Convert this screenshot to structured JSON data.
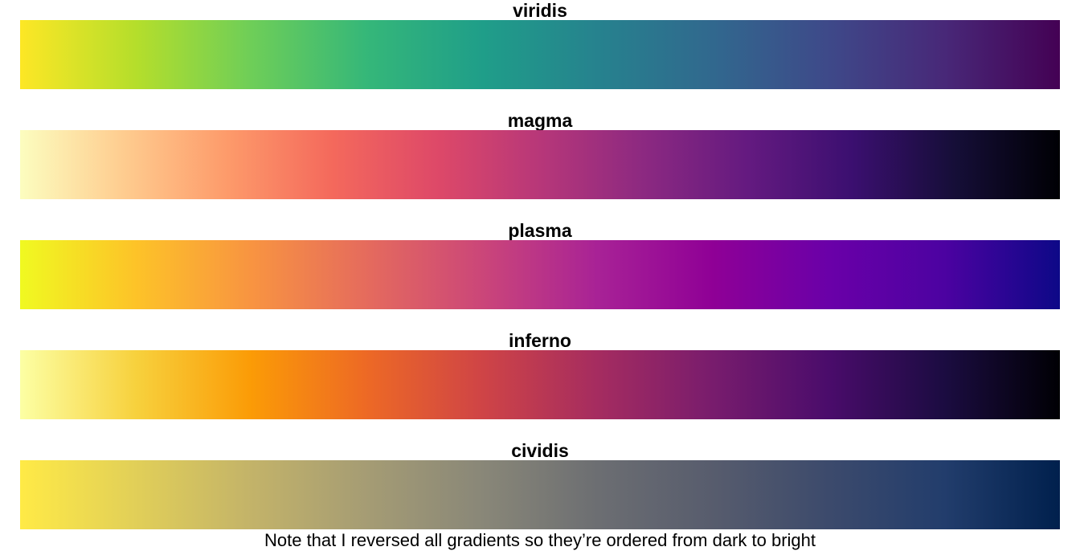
{
  "palettes": [
    {
      "name": "viridis",
      "colors": [
        "#FDE725",
        "#B5DE2B",
        "#6ECE58",
        "#35B779",
        "#1F9E89",
        "#26828E",
        "#31688E",
        "#3E4989",
        "#482878",
        "#440154"
      ]
    },
    {
      "name": "magma",
      "colors": [
        "#FCFDBF",
        "#FECC8F",
        "#FD9A6A",
        "#F4695C",
        "#DE4968",
        "#B73779",
        "#8C2981",
        "#641A80",
        "#3B0F70",
        "#150E37",
        "#000004"
      ]
    },
    {
      "name": "plasma",
      "colors": [
        "#F0F921",
        "#FDC328",
        "#F89441",
        "#E56B5D",
        "#CB4679",
        "#A82296",
        "#8F0096",
        "#6A00A8",
        "#4C02A1",
        "#0D0887"
      ]
    },
    {
      "name": "inferno",
      "colors": [
        "#FCFFA4",
        "#F7D13D",
        "#FB9B06",
        "#ED6925",
        "#CF4446",
        "#A52C60",
        "#781C6D",
        "#4A0C6B",
        "#1B0C41",
        "#000004"
      ]
    },
    {
      "name": "cividis",
      "colors": [
        "#FFEA46",
        "#E1CF58",
        "#C3B369",
        "#A59C74",
        "#898778",
        "#6C6E72",
        "#575C6D",
        "#3C4A6C",
        "#223D6C",
        "#00204D"
      ]
    }
  ],
  "caption": "Note that I reversed all gradients so they’re ordered from dark to bright"
}
